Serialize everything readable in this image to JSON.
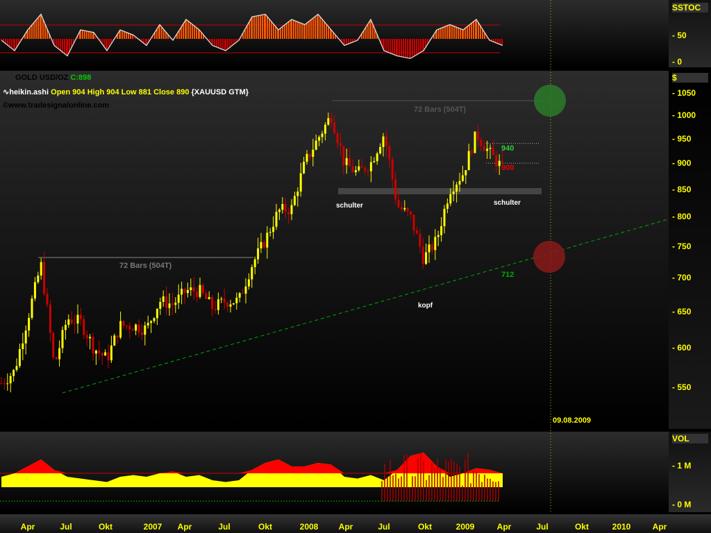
{
  "header": {
    "symbol": "GOLD USD/OZ",
    "close_label": "C:898",
    "indicator": "heikin.ashi",
    "ohlc": "Open 904 High 904 Low 881 Close 890",
    "source": "{XAUUSD GTM}",
    "copyright": "©www.tradesignalonline.com"
  },
  "panels": {
    "osc_title": "SSTOC",
    "price_title": "$",
    "vol_title": "VOL"
  },
  "annotations": {
    "bars1": "72 Bars (504T)",
    "bars2": "72 Bars (504T)",
    "schulter1": "schulter",
    "schulter2": "schulter",
    "kopf": "kopf",
    "trend_value": "712",
    "level_940": "940",
    "level_900": "900",
    "date_marker": "09.08.2009"
  },
  "colors": {
    "up": "#ffff00",
    "down": "#cc0000",
    "trend": "#00aa00",
    "marker": "#cccc00"
  },
  "chart_data": {
    "type": "candlestick",
    "scale": "log",
    "ylim": [
      520,
      1080
    ],
    "y_ticks": [
      "1050",
      "1000",
      "950",
      "900",
      "850",
      "800",
      "750",
      "700",
      "650",
      "600",
      "550"
    ],
    "x_ticks": [
      "Apr",
      "Jul",
      "Okt",
      "2007",
      "Apr",
      "Jul",
      "Okt",
      "2008",
      "Apr",
      "Jul",
      "Okt",
      "2009",
      "Apr",
      "Jul",
      "Okt",
      "2010",
      "Apr"
    ],
    "price_path": [
      [
        "2006-02",
        555
      ],
      [
        "2006-03",
        570
      ],
      [
        "2006-04",
        640
      ],
      [
        "2006-05",
        720
      ],
      [
        "2006-06",
        575
      ],
      [
        "2006-07",
        640
      ],
      [
        "2006-08",
        635
      ],
      [
        "2006-09",
        600
      ],
      [
        "2006-10",
        585
      ],
      [
        "2006-11",
        630
      ],
      [
        "2006-12",
        630
      ],
      [
        "2007-01",
        625
      ],
      [
        "2007-02",
        665
      ],
      [
        "2007-03",
        660
      ],
      [
        "2007-04",
        680
      ],
      [
        "2007-05",
        680
      ],
      [
        "2007-06",
        655
      ],
      [
        "2007-07",
        665
      ],
      [
        "2007-08",
        665
      ],
      [
        "2007-09",
        720
      ],
      [
        "2007-10",
        760
      ],
      [
        "2007-11",
        810
      ],
      [
        "2007-12",
        815
      ],
      [
        "2008-01",
        900
      ],
      [
        "2008-02",
        950
      ],
      [
        "2008-03",
        1000
      ],
      [
        "2008-04",
        900
      ],
      [
        "2008-05",
        880
      ],
      [
        "2008-06",
        900
      ],
      [
        "2008-07",
        960
      ],
      [
        "2008-08",
        820
      ],
      [
        "2008-09",
        800
      ],
      [
        "2008-10",
        730
      ],
      [
        "2008-11",
        760
      ],
      [
        "2008-12",
        850
      ],
      [
        "2009-01",
        880
      ],
      [
        "2009-02",
        960
      ],
      [
        "2009-03",
        920
      ],
      [
        "2009-04",
        890
      ]
    ],
    "sstoc": [
      40,
      20,
      60,
      90,
      30,
      10,
      60,
      55,
      20,
      60,
      50,
      30,
      70,
      40,
      80,
      60,
      30,
      20,
      40,
      85,
      90,
      60,
      80,
      70,
      90,
      60,
      30,
      40,
      80,
      20,
      10,
      5,
      20,
      60,
      70,
      60,
      80,
      40,
      30
    ],
    "volume_m": [
      0.3,
      0.4,
      0.6,
      0.8,
      0.5,
      0.3,
      0.25,
      0.2,
      0.15,
      0.3,
      0.35,
      0.3,
      0.4,
      0.45,
      0.3,
      0.35,
      0.2,
      0.15,
      0.2,
      0.5,
      0.7,
      0.8,
      0.6,
      0.6,
      0.7,
      0.65,
      0.3,
      0.25,
      0.35,
      0.2,
      0.5,
      0.9,
      1.0,
      0.6,
      0.3,
      0.4,
      0.55,
      0.5,
      0.4
    ],
    "trendline": [
      [
        "2006-07",
        545
      ],
      [
        "2008-10",
        690
      ],
      [
        "2009-07",
        735
      ]
    ],
    "resistance_levels": [
      940,
      900
    ],
    "neckline": 845
  }
}
